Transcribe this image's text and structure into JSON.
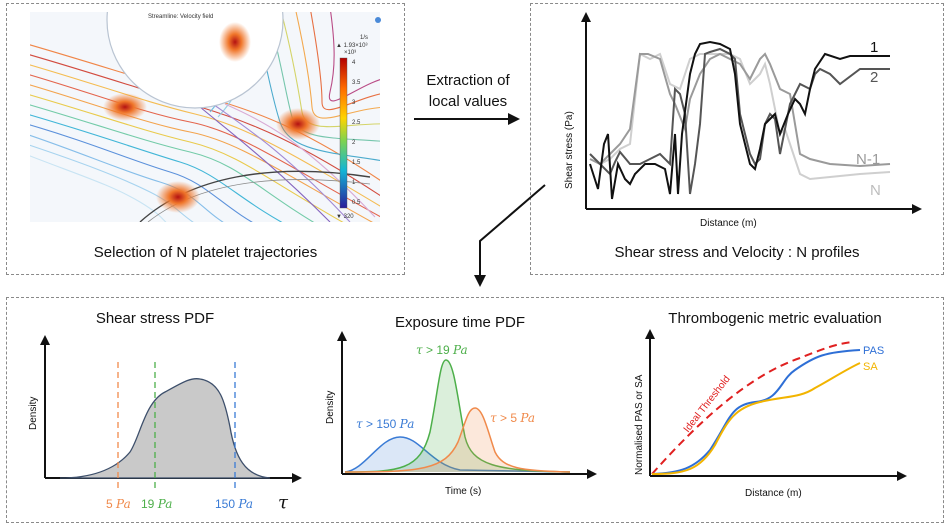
{
  "top_left": {
    "caption": "Selection of N platelet trajectories",
    "sim_title": "Streamline: Velocity field",
    "legend_unit": "1/s",
    "legend_max": "▲ 1.93×10³",
    "legend_scale": "×10³",
    "legend_ticks": [
      "4",
      "3.5",
      "3",
      "2.5",
      "2",
      "1.5",
      "1",
      "0.5"
    ],
    "legend_min": "▼ 320"
  },
  "arrow": {
    "label_line1": "Extraction of",
    "label_line2": "local values"
  },
  "top_right": {
    "caption": "Shear stress and Velocity : N profiles",
    "ylabel": "Shear stress (Pa)",
    "xlabel": "Distance (m)",
    "curve_labels": [
      "1",
      "2",
      "N-1",
      "N"
    ],
    "colors": {
      "c1": "#111111",
      "c2": "#555555",
      "cN1": "#9a9a9a",
      "cN": "#cfcfcf"
    }
  },
  "bottom_left": {
    "title": "Shear stress PDF",
    "ylabel": "Density",
    "xlabel": "τ",
    "threshold_labels": [
      {
        "value": "5",
        "unit": "Pa",
        "color": "#f08a4b"
      },
      {
        "value": "19",
        "unit": "Pa",
        "color": "#4daf4a"
      },
      {
        "value": "150",
        "unit": "Pa",
        "color": "#3a7bd5"
      }
    ]
  },
  "bottom_mid": {
    "title": "Exposure time PDF",
    "ylabel": "Density",
    "xlabel": "Time (s)",
    "curve_labels": [
      {
        "text": "τ > 150 Pa",
        "color": "#3a7bd5"
      },
      {
        "text": "τ > 19 Pa",
        "color": "#4daf4a"
      },
      {
        "text": "τ > 5 Pa",
        "color": "#f08a4b"
      }
    ]
  },
  "bottom_right": {
    "title": "Thrombogenic metric evaluation",
    "ylabel": "Normalised PAS or SA",
    "xlabel": "Distance (m)",
    "threshold_label": "Ideal Threshold",
    "legend": [
      {
        "name": "PAS",
        "color": "#2e6fd6"
      },
      {
        "name": "SA",
        "color": "#f2b400"
      }
    ]
  }
}
